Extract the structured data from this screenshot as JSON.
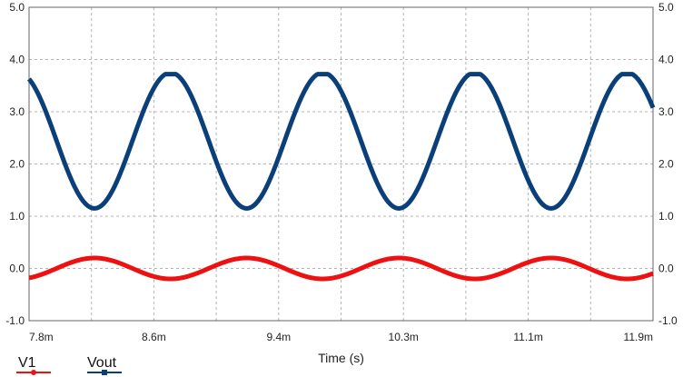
{
  "chart_data": {
    "type": "line",
    "xlabel": "Time (s)",
    "x_ticks": [
      "7.8m",
      "8.6m",
      "9.4m",
      "10.3m",
      "11.1m",
      "11.9m"
    ],
    "xlim": [
      0.0078,
      0.0119
    ],
    "y_ticks_left": [
      "5.0",
      "4.0",
      "3.0",
      "2.0",
      "1.0",
      "0.0",
      "-1.0"
    ],
    "y_ticks_right": [
      "5.0",
      "4.0",
      "3.0",
      "2.0",
      "1.0",
      "0.0",
      "-1.0"
    ],
    "ylim": [
      -1.0,
      5.0
    ],
    "grid": true,
    "legend_position": "bottom-left",
    "series": [
      {
        "name": "V1",
        "color": "#ee1111",
        "marker": "circle",
        "offset": 0.0,
        "amplitude": 0.2,
        "clip_high": 10.0,
        "period": 0.001,
        "peak_time": 0.00823
      },
      {
        "name": "Vout",
        "color": "#0b3f7a",
        "marker": "square",
        "offset": 2.45,
        "amplitude": 1.3,
        "clip_high": 3.72,
        "period": 0.001,
        "peak_time": 0.00873
      }
    ]
  }
}
